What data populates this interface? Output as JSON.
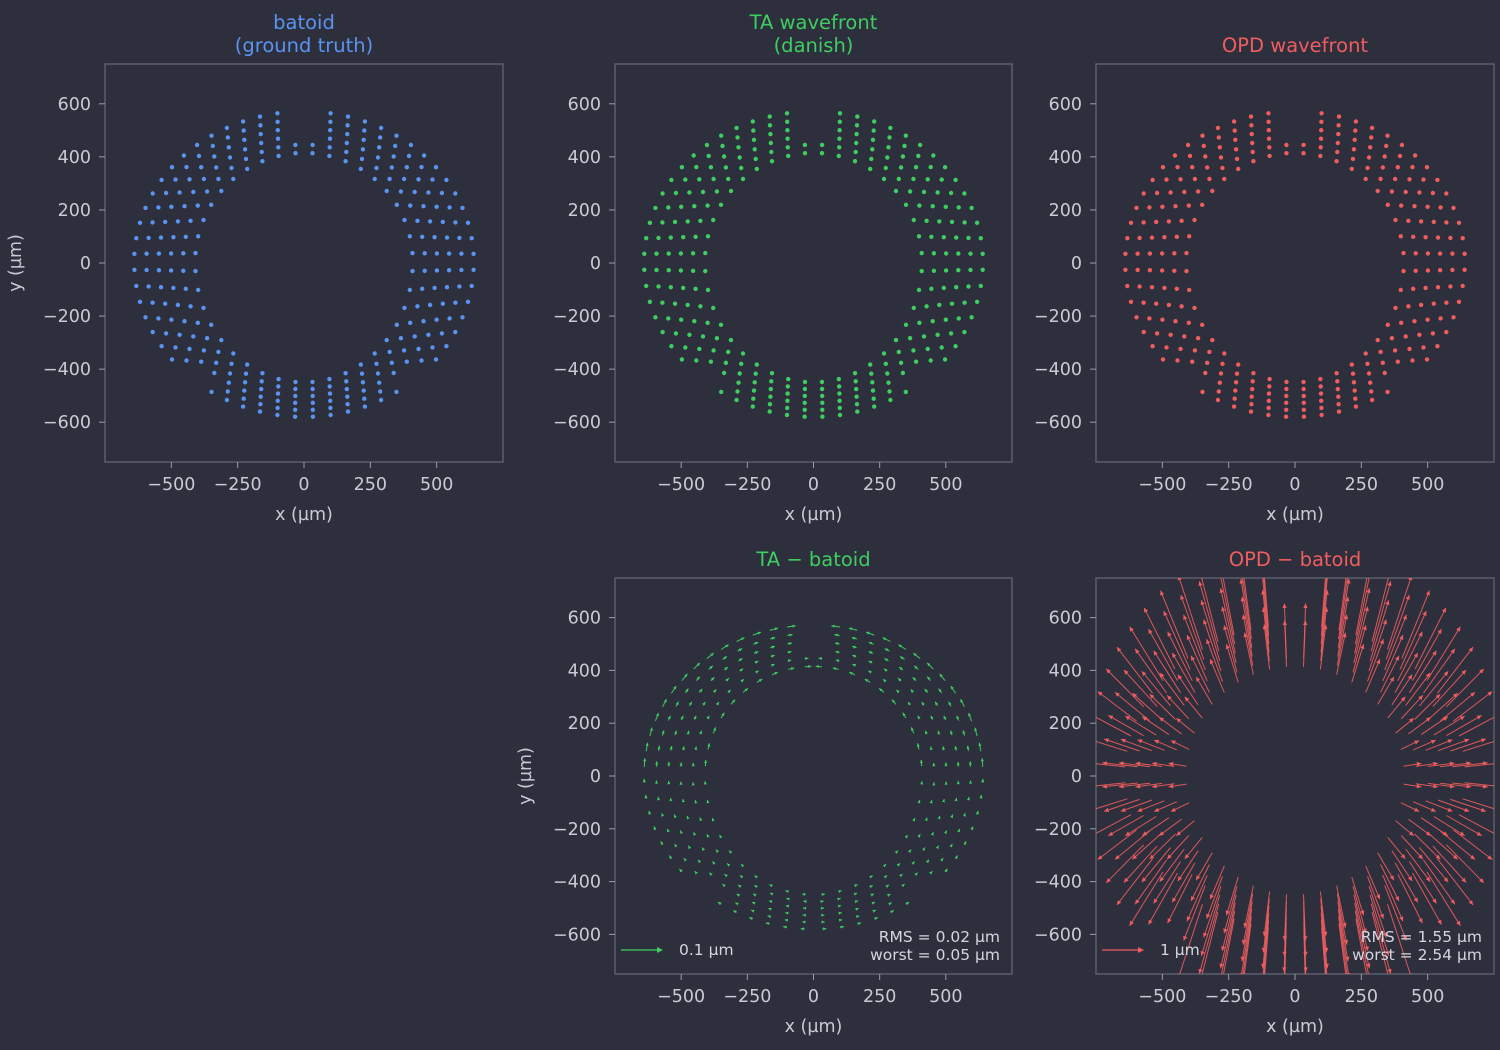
{
  "colors": {
    "batoid": "#5b93f0",
    "ta": "#3fcd62",
    "opd": "#ef5d5f"
  },
  "pattern": {
    "rings": 6,
    "x_radius_inner": 410,
    "x_radius_step": 46,
    "y_radius_inner_top": 410,
    "y_radius_inner_bottom": 455,
    "y_radius_step": 26,
    "y_center": 5,
    "gap_top_half_width_x": 100,
    "gap_bottom_start_angle": 22,
    "points_per_ring": 40
  },
  "chart_data": [
    {
      "id": "batoid",
      "type": "scatter",
      "title": "batoid\n(ground truth)",
      "title_lines": [
        "batoid",
        "(ground truth)"
      ],
      "xlabel": "x  (µm)",
      "ylabel": "y  (µm)",
      "xlim": [
        -750,
        750
      ],
      "ylim": [
        -750,
        750
      ],
      "xticks": [
        -500,
        -250,
        0,
        250,
        500
      ],
      "xtick_labels": [
        "−500",
        "−250",
        "0",
        "250",
        "500"
      ],
      "yticks": [
        600,
        400,
        200,
        0,
        -200,
        -400,
        -600
      ],
      "ytick_labels": [
        "600",
        "400",
        "200",
        "0",
        "−200",
        "−400",
        "−600"
      ],
      "color": "batoid"
    },
    {
      "id": "ta",
      "type": "scatter",
      "title_lines": [
        "TA wavefront",
        "(danish)"
      ],
      "xlabel": "x  (µm)",
      "ylabel": "",
      "xlim": [
        -750,
        750
      ],
      "ylim": [
        -750,
        750
      ],
      "xticks": [
        -500,
        -250,
        0,
        250,
        500
      ],
      "xtick_labels": [
        "−500",
        "−250",
        "0",
        "250",
        "500"
      ],
      "yticks": [
        600,
        400,
        200,
        0,
        -200,
        -400,
        -600
      ],
      "ytick_labels": [
        "600",
        "400",
        "200",
        "0",
        "−200",
        "−400",
        "−600"
      ],
      "color": "ta"
    },
    {
      "id": "opd",
      "type": "scatter",
      "title_lines": [
        "OPD wavefront"
      ],
      "xlabel": "x  (µm)",
      "ylabel": "",
      "xlim": [
        -750,
        750
      ],
      "ylim": [
        -750,
        750
      ],
      "xticks": [
        -500,
        -250,
        0,
        250,
        500
      ],
      "xtick_labels": [
        "−500",
        "−250",
        "0",
        "250",
        "500"
      ],
      "yticks": [
        600,
        400,
        200,
        0,
        -200,
        -400,
        -600
      ],
      "ytick_labels": [
        "600",
        "400",
        "200",
        "0",
        "−200",
        "−400",
        "−600"
      ],
      "color": "opd"
    },
    {
      "id": "ta_diff",
      "type": "quiver",
      "title_lines": [
        "TA − batoid"
      ],
      "xlabel": "x  (µm)",
      "ylabel": "y  (µm)",
      "xlim": [
        -750,
        750
      ],
      "ylim": [
        -750,
        750
      ],
      "xticks": [
        -500,
        -250,
        0,
        250,
        500
      ],
      "xtick_labels": [
        "−500",
        "−250",
        "0",
        "250",
        "500"
      ],
      "yticks": [
        600,
        400,
        200,
        0,
        -200,
        -400,
        -600
      ],
      "ytick_labels": [
        "600",
        "400",
        "200",
        "0",
        "−200",
        "−400",
        "−600"
      ],
      "color": "ta",
      "key_label": "0.1 µm",
      "stats": [
        "RMS = 0.02 µm",
        "worst = 0.05 µm"
      ]
    },
    {
      "id": "opd_diff",
      "type": "quiver",
      "title_lines": [
        "OPD − batoid"
      ],
      "xlabel": "x  (µm)",
      "ylabel": "",
      "xlim": [
        -750,
        750
      ],
      "ylim": [
        -750,
        750
      ],
      "xticks": [
        -500,
        -250,
        0,
        250,
        500
      ],
      "xtick_labels": [
        "−500",
        "−250",
        "0",
        "250",
        "500"
      ],
      "yticks": [
        600,
        400,
        200,
        0,
        -200,
        -400,
        -600
      ],
      "ytick_labels": [
        "600",
        "400",
        "200",
        "0",
        "−200",
        "−400",
        "−600"
      ],
      "color": "opd",
      "key_label": "1 µm",
      "stats": [
        "RMS = 1.55 µm",
        "worst = 2.54 µm"
      ]
    }
  ]
}
